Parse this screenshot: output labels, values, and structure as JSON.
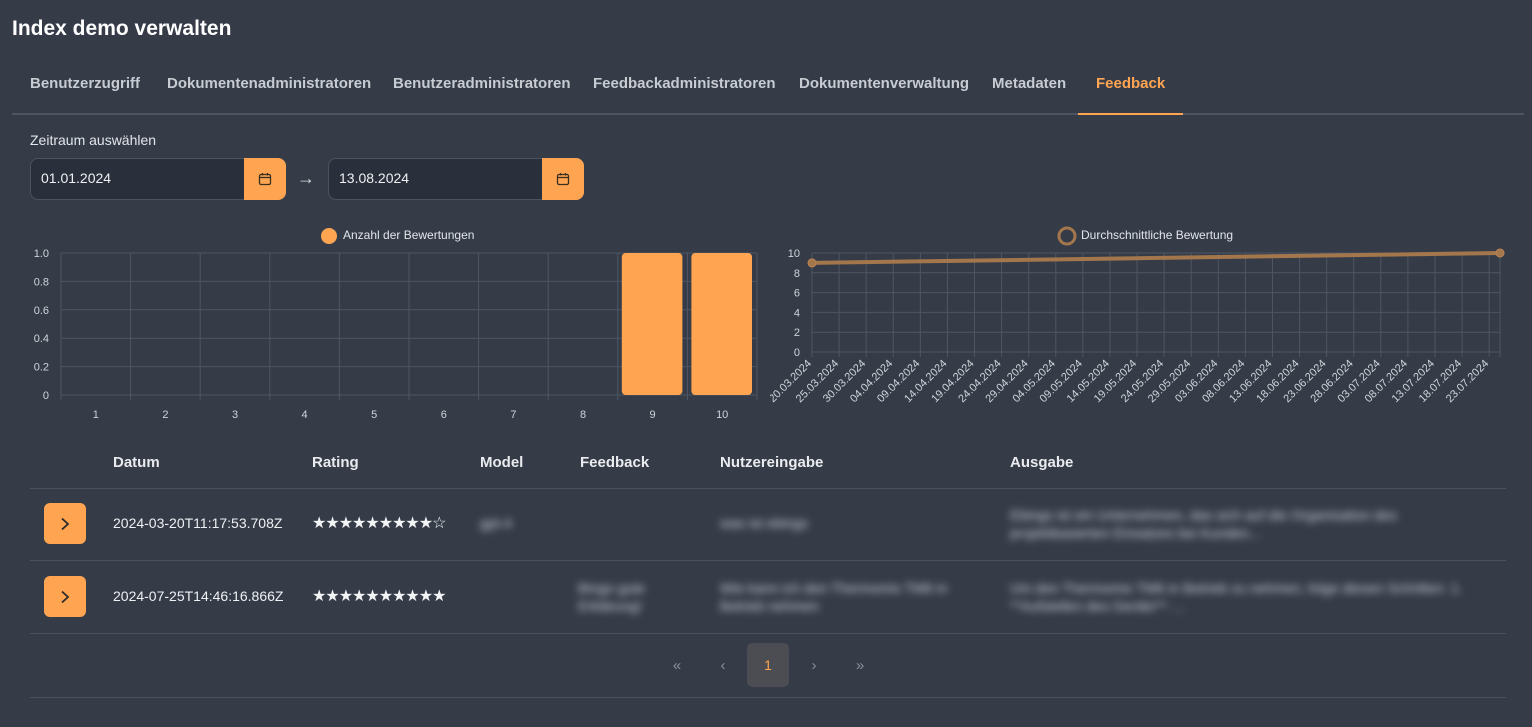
{
  "page": {
    "title": "Index demo verwalten"
  },
  "tabs": [
    {
      "label": "Benutzerzugriff",
      "active": false
    },
    {
      "label": "Dokumentenadministratoren",
      "active": false
    },
    {
      "label": "Benutzeradministratoren",
      "active": false
    },
    {
      "label": "Feedbackadministratoren",
      "active": false
    },
    {
      "label": "Dokumentenverwaltung",
      "active": false
    },
    {
      "label": "Metadaten",
      "active": false
    },
    {
      "label": "Feedback",
      "active": true
    }
  ],
  "range": {
    "label": "Zeitraum auswählen",
    "start": "01.01.2024",
    "end": "13.08.2024"
  },
  "colors": {
    "accent": "#ffa552",
    "background": "#353c48"
  },
  "chart_data": [
    {
      "type": "bar",
      "legend": "Anzahl der Bewertungen",
      "legend_position": "top-center",
      "categories": [
        "1",
        "2",
        "3",
        "4",
        "5",
        "6",
        "7",
        "8",
        "9",
        "10"
      ],
      "values": [
        0,
        0,
        0,
        0,
        0,
        0,
        0,
        0,
        1,
        1
      ],
      "ylim": [
        0,
        1
      ],
      "yticks": [
        "0",
        "0.2",
        "0.4",
        "0.6",
        "0.8",
        "1.0"
      ],
      "grid": true
    },
    {
      "type": "line",
      "legend": "Durchschnittliche Bewertung",
      "legend_position": "top-center",
      "x_ticks": [
        "20.03.2024",
        "25.03.2024",
        "30.03.2024",
        "04.04.2024",
        "09.04.2024",
        "14.04.2024",
        "19.04.2024",
        "24.04.2024",
        "29.04.2024",
        "04.05.2024",
        "09.05.2024",
        "14.05.2024",
        "19.05.2024",
        "24.05.2024",
        "29.05.2024",
        "03.06.2024",
        "08.06.2024",
        "13.06.2024",
        "18.06.2024",
        "23.06.2024",
        "28.06.2024",
        "03.07.2024",
        "08.07.2024",
        "13.07.2024",
        "18.07.2024",
        "23.07.2024"
      ],
      "points": [
        {
          "x": "2024-03-20",
          "y": 9
        },
        {
          "x": "2024-07-25",
          "y": 10
        }
      ],
      "yticks": [
        "0",
        "2",
        "4",
        "6",
        "8",
        "10"
      ],
      "ylim": [
        0,
        10
      ],
      "grid": true
    }
  ],
  "table": {
    "headers": {
      "datum": "Datum",
      "rating": "Rating",
      "model": "Model",
      "feedback": "Feedback",
      "input": "Nutzereingabe",
      "output": "Ausgabe"
    },
    "rows": [
      {
        "datum": "2024-03-20T11:17:53.708Z",
        "rating": "★★★★★★★★★☆",
        "model": "gpt-4",
        "feedback": "",
        "input": "was ist ebings",
        "output": "Ebings ist ein Unternehmen, das sich auf die Organisation des projektbasierten Einsatzes bei Kunden..."
      },
      {
        "datum": "2024-07-25T14:46:16.866Z",
        "rating": "★★★★★★★★★★",
        "model": "",
        "feedback": "Bingo gute Erklärung!",
        "input": "Wie kann ich den Thermomix TM6 in Betrieb nehmen",
        "output": "Um den Thermomix TM6 in Betrieb zu nehmen, folge diesen Schritten: 1. **Aufstellen des Geräts**: ..."
      }
    ]
  },
  "pagination": {
    "first": "«",
    "prev": "‹",
    "current": "1",
    "next": "›",
    "last": "»"
  }
}
